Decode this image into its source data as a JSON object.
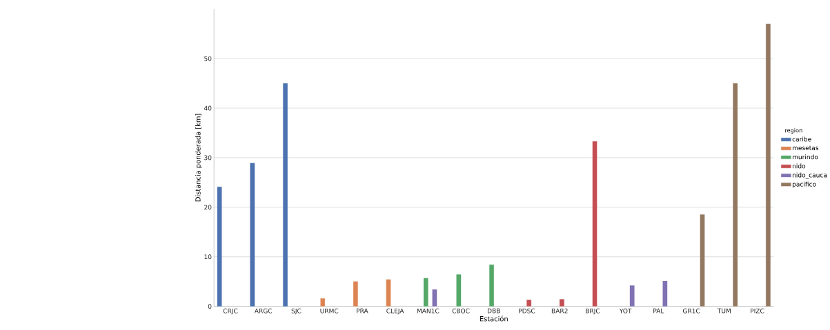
{
  "chart_data": {
    "type": "bar",
    "xlabel": "Estación",
    "ylabel": "Distancia ponderada [km]",
    "legend_title": "region",
    "legend": "right",
    "grid": "y",
    "categories": [
      "CRJC",
      "ARGC",
      "SJC",
      "URMC",
      "PRA",
      "CLEJA",
      "MAN1C",
      "CBOC",
      "DBB",
      "PDSC",
      "BAR2",
      "BRJC",
      "YOT",
      "PAL",
      "GR1C",
      "TUM",
      "PIZC"
    ],
    "ylim": [
      0,
      60
    ],
    "yticks": [
      0,
      10,
      20,
      30,
      40,
      50
    ],
    "series": [
      {
        "name": "caribe",
        "color": "#4c72b0",
        "values": [
          24.1,
          28.9,
          45.0,
          null,
          null,
          null,
          null,
          null,
          null,
          null,
          null,
          null,
          null,
          null,
          null,
          null,
          null
        ]
      },
      {
        "name": "mesetas",
        "color": "#dd8452",
        "values": [
          null,
          null,
          null,
          1.6,
          5.0,
          5.4,
          null,
          null,
          null,
          null,
          null,
          null,
          null,
          null,
          null,
          null,
          null
        ]
      },
      {
        "name": "murindo",
        "color": "#55a868",
        "values": [
          null,
          null,
          null,
          null,
          null,
          null,
          5.7,
          6.4,
          8.4,
          null,
          null,
          null,
          null,
          null,
          null,
          null,
          null
        ]
      },
      {
        "name": "nido",
        "color": "#c44e52",
        "values": [
          null,
          null,
          null,
          null,
          null,
          null,
          null,
          null,
          null,
          1.3,
          1.4,
          33.3,
          null,
          null,
          null,
          null,
          null
        ]
      },
      {
        "name": "nido_cauca",
        "color": "#8172b3",
        "values": [
          null,
          null,
          null,
          null,
          null,
          null,
          3.4,
          null,
          null,
          null,
          null,
          null,
          4.2,
          5.1,
          null,
          null,
          null
        ]
      },
      {
        "name": "pacifico",
        "color": "#937860",
        "values": [
          null,
          null,
          null,
          null,
          null,
          null,
          null,
          null,
          null,
          null,
          null,
          null,
          null,
          null,
          18.5,
          45.0,
          57.0
        ]
      }
    ]
  }
}
